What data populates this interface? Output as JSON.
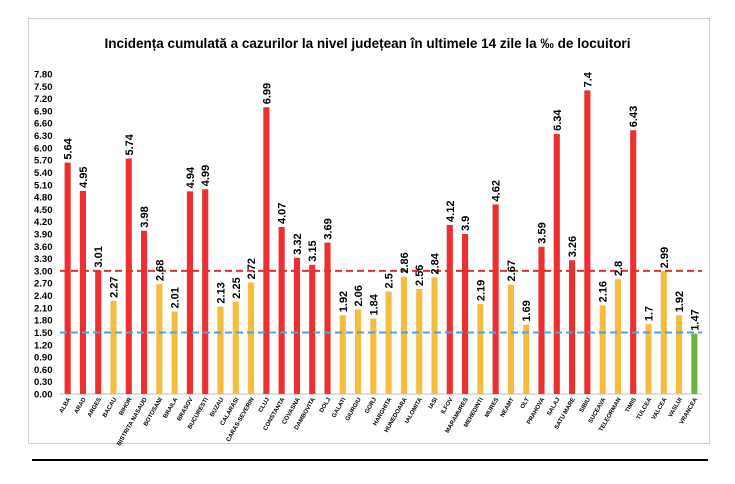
{
  "chart_data": {
    "type": "bar",
    "title": "Incidența cumulată a cazurilor la nivel județean în ultimele 14 zile la ‰ de locuitori",
    "xlabel": "",
    "ylabel": "",
    "ylim": [
      0,
      7.8
    ],
    "ytick_step": 0.3,
    "grid": false,
    "legend": "none",
    "categories": [
      "ALBA",
      "ARAD",
      "ARGES",
      "BACAU",
      "BIHOR",
      "BISTRITA NASAUD",
      "BOTOSANI",
      "BRAILA",
      "BRASOV",
      "BUCURESTI",
      "BUZAU",
      "CALARASI",
      "CARAS-SEVERIN",
      "CLUJ",
      "CONSTANTA",
      "COVASNA",
      "DAMBOVITA",
      "DOLJ",
      "GALATI",
      "GIURGIU",
      "GORJ",
      "HARGHITA",
      "HUNEDOARA",
      "IALOMITA",
      "IASI",
      "ILFOV",
      "MARAMURES",
      "MEHEDINTI",
      "MURES",
      "NEAMT",
      "OLT",
      "PRAHOVA",
      "SALAJ",
      "SATU MARE",
      "SIBIU",
      "SUCEAVA",
      "TELEORMAN",
      "TIMIS",
      "TULCEA",
      "VALCEA",
      "VASLUI",
      "VRANCEA"
    ],
    "values": [
      5.64,
      4.95,
      3.01,
      2.27,
      5.74,
      3.98,
      2.68,
      2.01,
      4.94,
      4.99,
      2.13,
      2.25,
      2.72,
      6.99,
      4.07,
      3.32,
      3.15,
      3.69,
      1.92,
      2.06,
      1.84,
      2.5,
      2.86,
      2.56,
      2.84,
      4.12,
      3.9,
      2.19,
      4.62,
      2.67,
      1.69,
      3.59,
      6.34,
      3.26,
      7.4,
      2.16,
      2.8,
      6.43,
      1.7,
      2.99,
      1.92,
      1.47
    ],
    "value_labels": [
      "5.64",
      "4.95",
      "3.01",
      "2.27",
      "5.74",
      "3.98",
      "2.68",
      "2.01",
      "4.94",
      "4.99",
      "2.13",
      "2.25",
      "2.72",
      "6.99",
      "4.07",
      "3.32",
      "3.15",
      "3.69",
      "1.92",
      "2.06",
      "1.84",
      "2.5",
      "2.86",
      "2.56",
      "2.84",
      "4.12",
      "3.9",
      "2.19",
      "4.62",
      "2.67",
      "1.69",
      "3.59",
      "6.34",
      "3.26",
      "7.4",
      "2.16",
      "2.8",
      "6.43",
      "1.7",
      "2.99",
      "1.92",
      "1.47"
    ],
    "reference_lines": [
      {
        "value": 3.0,
        "color": "#e03030",
        "style": "dashed"
      },
      {
        "value": 1.5,
        "color": "#4ea3e0",
        "style": "dashed"
      }
    ],
    "colors": {
      "above_3": "#ee2f2f",
      "between": "#f5bd3f",
      "below_1_5": "#6db33f"
    }
  }
}
